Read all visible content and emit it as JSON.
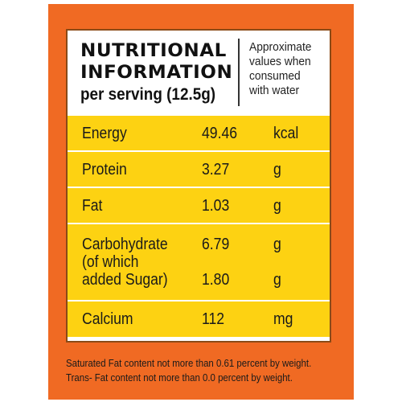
{
  "label": {
    "title_line1": "NUTRITIONAL",
    "title_line2": "INFORMATION",
    "serving": "per serving (12.5g)",
    "note_lines": [
      "Approximate",
      "values when",
      "consumed",
      "with water"
    ]
  },
  "nutrients": [
    {
      "name": "Energy",
      "value": "49.46",
      "unit": "kcal"
    },
    {
      "name": "Protein",
      "value": "3.27",
      "unit": "g"
    },
    {
      "name": "Fat",
      "value": "1.03",
      "unit": "g"
    },
    {
      "name_lines": [
        "Carbohydrate",
        "(of which",
        "added Sugar)"
      ],
      "value": "6.79",
      "unit": "g",
      "sub_value": "1.80",
      "sub_unit": "g"
    },
    {
      "name": "Calcium",
      "value": "112",
      "unit": "mg"
    }
  ],
  "footer": {
    "line1": "Saturated Fat content not more than 0.61 percent by weight.",
    "line2": "Trans- Fat content not more than 0.0 percent by weight."
  },
  "colors": {
    "panel": "#f06a23",
    "table_row": "#fdd212",
    "header_bg": "#ffffff"
  }
}
